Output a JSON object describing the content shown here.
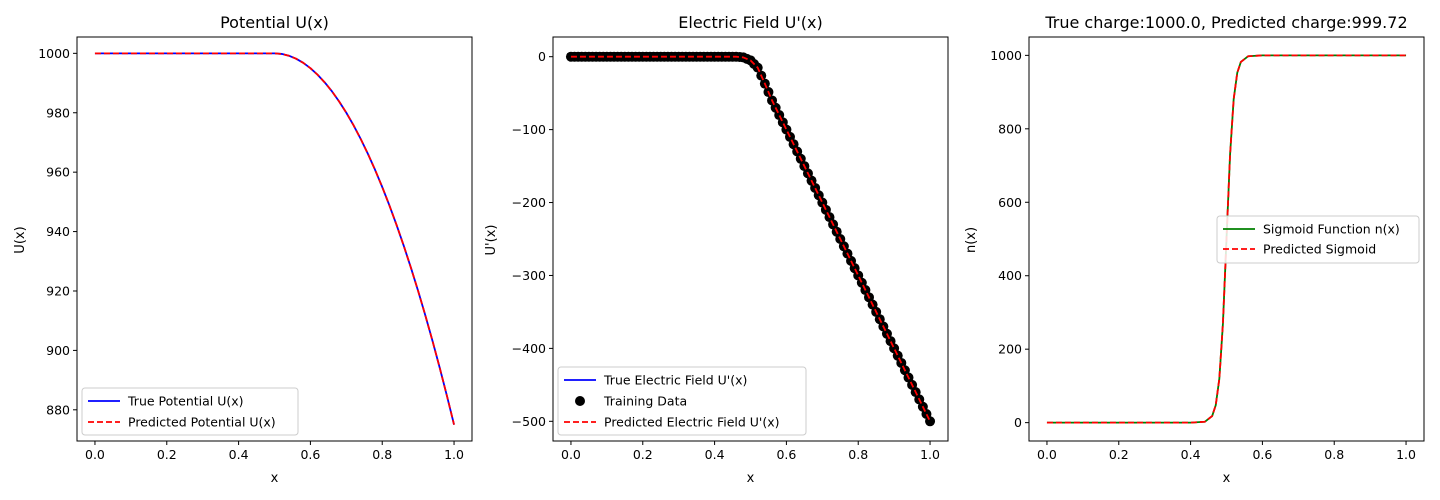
{
  "chart_data": [
    {
      "type": "line",
      "title": "Potential U(x)",
      "xlabel": "x",
      "ylabel": "U(x)",
      "xlim": [
        -0.05,
        1.05
      ],
      "ylim": [
        869.5,
        1005.5
      ],
      "xticks": [
        0.0,
        0.2,
        0.4,
        0.6,
        0.8,
        1.0
      ],
      "xtick_labels": [
        "0.0",
        "0.2",
        "0.4",
        "0.6",
        "0.8",
        "1.0"
      ],
      "yticks": [
        880,
        900,
        920,
        940,
        960,
        980,
        1000
      ],
      "ytick_labels": [
        "880",
        "900",
        "920",
        "940",
        "960",
        "980",
        "1000"
      ],
      "legend_position": "lower-left",
      "series": [
        {
          "name": "True Potential U(x)",
          "style": "solid",
          "color": "#0000ff",
          "kind": "line",
          "x": [
            0.0,
            0.5,
            0.52,
            0.54,
            0.56,
            0.58,
            0.6,
            0.62,
            0.64,
            0.66,
            0.68,
            0.7,
            0.72,
            0.74,
            0.76,
            0.78,
            0.8,
            0.82,
            0.84,
            0.86,
            0.88,
            0.9,
            0.92,
            0.94,
            0.96,
            0.98,
            1.0
          ],
          "y": [
            1000,
            1000,
            999.8,
            999.2,
            998.2,
            996.8,
            995.0,
            992.8,
            990.2,
            987.2,
            983.8,
            980.0,
            975.8,
            971.2,
            966.2,
            960.8,
            955.0,
            948.8,
            942.2,
            935.2,
            927.8,
            920.0,
            911.8,
            903.2,
            894.2,
            884.8,
            875.0
          ]
        },
        {
          "name": "Predicted Potential U(x)",
          "style": "dashed",
          "color": "#ff0000",
          "kind": "line",
          "x": [
            0.0,
            0.5,
            0.52,
            0.54,
            0.56,
            0.58,
            0.6,
            0.62,
            0.64,
            0.66,
            0.68,
            0.7,
            0.72,
            0.74,
            0.76,
            0.78,
            0.8,
            0.82,
            0.84,
            0.86,
            0.88,
            0.9,
            0.92,
            0.94,
            0.96,
            0.98,
            1.0
          ],
          "y": [
            1000,
            1000,
            999.8,
            999.2,
            998.2,
            996.8,
            995.0,
            992.8,
            990.2,
            987.2,
            983.8,
            980.0,
            975.8,
            971.2,
            966.2,
            960.8,
            955.0,
            948.8,
            942.2,
            935.2,
            927.8,
            920.0,
            911.8,
            903.2,
            894.2,
            884.8,
            875.0
          ]
        }
      ]
    },
    {
      "type": "line",
      "title": "Electric Field U'(x)",
      "xlabel": "x",
      "ylabel": "U'(x)",
      "xlim": [
        -0.05,
        1.05
      ],
      "ylim": [
        -527,
        27
      ],
      "xticks": [
        0.0,
        0.2,
        0.4,
        0.6,
        0.8,
        1.0
      ],
      "xtick_labels": [
        "0.0",
        "0.2",
        "0.4",
        "0.6",
        "0.8",
        "1.0"
      ],
      "yticks": [
        -500,
        -400,
        -300,
        -200,
        -100,
        0
      ],
      "ytick_labels": [
        "−500",
        "−400",
        "−300",
        "−200",
        "−100",
        "0"
      ],
      "legend_position": "lower-left",
      "series": [
        {
          "name": "True Electric Field U'(x)",
          "style": "solid",
          "color": "#0000ff",
          "kind": "line",
          "x": [
            0.0,
            0.46,
            0.48,
            0.5,
            0.52,
            0.54,
            0.56,
            0.6,
            0.7,
            0.8,
            0.9,
            1.0
          ],
          "y": [
            0,
            0,
            -1,
            -5,
            -15,
            -37,
            -60,
            -100,
            -200,
            -300,
            -400,
            -500
          ]
        },
        {
          "name": "Training Data",
          "style": "markers",
          "color": "#000000",
          "kind": "scatter",
          "x": [
            0.0,
            0.46,
            0.48,
            0.5,
            0.52,
            0.54,
            0.56,
            0.6,
            0.7,
            0.8,
            0.9,
            1.0
          ],
          "y": [
            0,
            0,
            -1,
            -5,
            -15,
            -37,
            -60,
            -100,
            -200,
            -300,
            -400,
            -500
          ]
        },
        {
          "name": "Predicted Electric Field U'(x)",
          "style": "dashed",
          "color": "#ff0000",
          "kind": "line",
          "x": [
            0.0,
            0.46,
            0.48,
            0.5,
            0.52,
            0.54,
            0.56,
            0.6,
            0.7,
            0.8,
            0.9,
            1.0
          ],
          "y": [
            0,
            0,
            -1,
            -5,
            -15,
            -37,
            -60,
            -100,
            -200,
            -300,
            -400,
            -500
          ]
        }
      ]
    },
    {
      "type": "line",
      "title": "True charge:1000.0, Predicted charge:999.72",
      "xlabel": "x",
      "ylabel": "n(x)",
      "xlim": [
        -0.05,
        1.05
      ],
      "ylim": [
        -50,
        1050
      ],
      "xticks": [
        0.0,
        0.2,
        0.4,
        0.6,
        0.8,
        1.0
      ],
      "xtick_labels": [
        "0.0",
        "0.2",
        "0.4",
        "0.6",
        "0.8",
        "1.0"
      ],
      "yticks": [
        0,
        200,
        400,
        600,
        800,
        1000
      ],
      "ytick_labels": [
        "0",
        "200",
        "400",
        "600",
        "800",
        "1000"
      ],
      "legend_position": "center-right",
      "series": [
        {
          "name": "Sigmoid Function n(x)",
          "style": "solid",
          "color": "#008000",
          "kind": "line",
          "x": [
            0.0,
            0.4,
            0.44,
            0.46,
            0.47,
            0.48,
            0.49,
            0.5,
            0.51,
            0.52,
            0.53,
            0.54,
            0.56,
            0.6,
            1.0
          ],
          "y": [
            0,
            0,
            2.5,
            18,
            47.4,
            119,
            269,
            500,
            731,
            881,
            952.6,
            982,
            997.5,
            1000,
            1000
          ]
        },
        {
          "name": "Predicted Sigmoid",
          "style": "dashed",
          "color": "#ff0000",
          "kind": "line",
          "x": [
            0.0,
            0.4,
            0.44,
            0.46,
            0.47,
            0.48,
            0.49,
            0.5,
            0.51,
            0.52,
            0.53,
            0.54,
            0.56,
            0.6,
            1.0
          ],
          "y": [
            0,
            0,
            2.5,
            18,
            47.4,
            119,
            269,
            500,
            731,
            881,
            952.6,
            982,
            997.5,
            1000,
            1000
          ]
        }
      ]
    }
  ]
}
